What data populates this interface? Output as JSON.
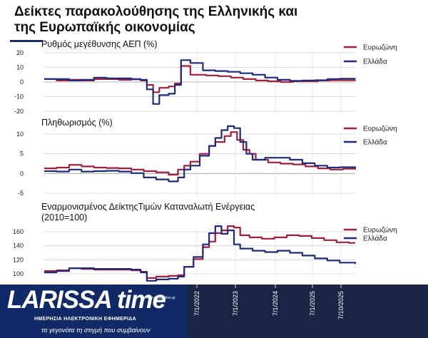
{
  "title": "Δείκτες παρακολούθησης της  Ελληνικής και\nτης Ευρωπαϊκής οικονομίας",
  "colors": {
    "eurozone": "#a01f3a",
    "greece": "#1e2b7a",
    "grid": "#cfcfcf",
    "axis": "#555555"
  },
  "date_labels": [
    "7/1/2022",
    "7/1/2023",
    "7/1/2024",
    "7/1/2025",
    "7/10/2025"
  ],
  "logo": {
    "main": "LARISSA time",
    "subtitle": "ΗΜΕΡΗΣΙΑ ΗΛΕΚΤΡΟΝΙΚΗ ΕΦΗΜΕΡΙΔΑ",
    "tagline": "τα γεγονότα τη στιγμή που συμβαίνουν",
    "url": "www.larissatime.gr"
  },
  "chart_data": [
    {
      "type": "line",
      "title": "Ρυθμός μεγέθυνσης ΑΕΠ (%)",
      "yticks": [
        20,
        10,
        0,
        -10,
        -20
      ],
      "ylim": [
        -20,
        20
      ],
      "xlim": [
        0,
        100
      ],
      "series": [
        {
          "name": "Ευρωζώνη",
          "color": "#a01f3a",
          "points": [
            [
              0,
              2
            ],
            [
              4,
              1
            ],
            [
              8,
              1.5
            ],
            [
              12,
              1
            ],
            [
              16,
              2
            ],
            [
              20,
              2
            ],
            [
              24,
              1.5
            ],
            [
              28,
              1.8
            ],
            [
              31,
              1
            ],
            [
              33,
              -2
            ],
            [
              35,
              -7
            ],
            [
              37,
              -4
            ],
            [
              40,
              -3
            ],
            [
              42,
              -1
            ],
            [
              44,
              11
            ],
            [
              47,
              5
            ],
            [
              52,
              4.5
            ],
            [
              56,
              4
            ],
            [
              60,
              3
            ],
            [
              64,
              2
            ],
            [
              68,
              1
            ],
            [
              72,
              0.5
            ],
            [
              76,
              0
            ],
            [
              80,
              0.5
            ],
            [
              84,
              0.5
            ],
            [
              88,
              1
            ],
            [
              92,
              1.2
            ],
            [
              96,
              1.2
            ],
            [
              100,
              1.3
            ]
          ]
        },
        {
          "name": "Ελλάδα",
          "color": "#1e2b7a",
          "points": [
            [
              0,
              2
            ],
            [
              4,
              2
            ],
            [
              8,
              1
            ],
            [
              12,
              1.5
            ],
            [
              16,
              3
            ],
            [
              20,
              2.5
            ],
            [
              24,
              2.5
            ],
            [
              28,
              2
            ],
            [
              31,
              1.5
            ],
            [
              33,
              -5
            ],
            [
              35,
              -15
            ],
            [
              37,
              -9
            ],
            [
              40,
              -8
            ],
            [
              42,
              -2
            ],
            [
              44,
              15
            ],
            [
              47,
              13
            ],
            [
              51,
              8
            ],
            [
              55,
              7.5
            ],
            [
              59,
              7
            ],
            [
              63,
              6
            ],
            [
              67,
              5
            ],
            [
              71,
              3
            ],
            [
              75,
              1.5
            ],
            [
              79,
              0.8
            ],
            [
              83,
              1
            ],
            [
              87,
              1.2
            ],
            [
              91,
              2
            ],
            [
              95,
              2.3
            ],
            [
              100,
              2.5
            ]
          ]
        }
      ]
    },
    {
      "type": "line",
      "title": "Πληθωρισμός (%)",
      "yticks": [
        10,
        5,
        0,
        -5
      ],
      "ylim": [
        -5,
        13
      ],
      "xlim": [
        0,
        100
      ],
      "series": [
        {
          "name": "Ευρωζώνη",
          "color": "#a01f3a",
          "points": [
            [
              0,
              1.3
            ],
            [
              4,
              1.5
            ],
            [
              8,
              2.2
            ],
            [
              12,
              1.8
            ],
            [
              16,
              1.5
            ],
            [
              20,
              1.4
            ],
            [
              24,
              1.3
            ],
            [
              28,
              1
            ],
            [
              32,
              0.6
            ],
            [
              36,
              0.3
            ],
            [
              40,
              -0.3
            ],
            [
              43,
              1
            ],
            [
              45,
              2
            ],
            [
              47,
              3
            ],
            [
              50,
              5
            ],
            [
              53,
              7
            ],
            [
              55,
              8
            ],
            [
              58,
              9.5
            ],
            [
              60,
              10.5
            ],
            [
              62,
              8.5
            ],
            [
              64,
              6
            ],
            [
              66,
              5
            ],
            [
              68,
              3.5
            ],
            [
              72,
              2.8
            ],
            [
              76,
              2.5
            ],
            [
              80,
              2.3
            ],
            [
              84,
              1.8
            ],
            [
              88,
              1.3
            ],
            [
              92,
              1
            ],
            [
              96,
              1.2
            ],
            [
              100,
              1.5
            ]
          ]
        },
        {
          "name": "Ελλάδα",
          "color": "#1e2b7a",
          "points": [
            [
              0,
              0.6
            ],
            [
              4,
              0.5
            ],
            [
              8,
              1
            ],
            [
              12,
              0.5
            ],
            [
              16,
              0.6
            ],
            [
              20,
              0.7
            ],
            [
              24,
              0.5
            ],
            [
              28,
              0.1
            ],
            [
              32,
              -1
            ],
            [
              36,
              -1.5
            ],
            [
              40,
              -2
            ],
            [
              43,
              -1
            ],
            [
              45,
              1
            ],
            [
              47,
              2
            ],
            [
              50,
              4.5
            ],
            [
              53,
              7
            ],
            [
              55,
              9
            ],
            [
              57,
              11
            ],
            [
              59,
              12
            ],
            [
              61,
              11.5
            ],
            [
              63,
              8
            ],
            [
              65,
              5
            ],
            [
              67,
              3.5
            ],
            [
              71,
              4
            ],
            [
              75,
              4
            ],
            [
              79,
              3.5
            ],
            [
              83,
              2.6
            ],
            [
              87,
              2
            ],
            [
              91,
              1.5
            ],
            [
              95,
              1.6
            ],
            [
              100,
              1.5
            ]
          ]
        }
      ]
    },
    {
      "type": "line",
      "title": "Εναρμονισμένος ΔείκτηςΤιμών Καταναλωτή Ενέργειας\n(2010=100)",
      "yticks": [
        160,
        140,
        120,
        100
      ],
      "ylim": [
        98,
        170
      ],
      "xlim": [
        0,
        100
      ],
      "series": [
        {
          "name": "Ευρωζώνη",
          "color": "#a01f3a",
          "points": [
            [
              0,
              104
            ],
            [
              4,
              105
            ],
            [
              8,
              108
            ],
            [
              12,
              107
            ],
            [
              16,
              106
            ],
            [
              20,
              106
            ],
            [
              24,
              106
            ],
            [
              28,
              105
            ],
            [
              31,
              103
            ],
            [
              33,
              94
            ],
            [
              36,
              96
            ],
            [
              40,
              97
            ],
            [
              43,
              98
            ],
            [
              45,
              110
            ],
            [
              48,
              121
            ],
            [
              51,
              138
            ],
            [
              53,
              146
            ],
            [
              55,
              158
            ],
            [
              57,
              162
            ],
            [
              59,
              168
            ],
            [
              61,
              166
            ],
            [
              63,
              155
            ],
            [
              66,
              152
            ],
            [
              70,
              150
            ],
            [
              74,
              152
            ],
            [
              78,
              155
            ],
            [
              82,
              154
            ],
            [
              86,
              151
            ],
            [
              90,
              148
            ],
            [
              94,
              145
            ],
            [
              98,
              144
            ],
            [
              100,
              144
            ]
          ]
        },
        {
          "name": "Ελλάδα",
          "color": "#1e2b7a",
          "points": [
            [
              0,
              102
            ],
            [
              4,
              104
            ],
            [
              8,
              108
            ],
            [
              12,
              108
            ],
            [
              16,
              107
            ],
            [
              20,
              107
            ],
            [
              24,
              107
            ],
            [
              28,
              106
            ],
            [
              31,
              102
            ],
            [
              33,
              90
            ],
            [
              36,
              92
            ],
            [
              40,
              93
            ],
            [
              43,
              96
            ],
            [
              45,
              110
            ],
            [
              48,
              124
            ],
            [
              51,
              142
            ],
            [
              53,
              158
            ],
            [
              55,
              168
            ],
            [
              57,
              157
            ],
            [
              59,
              162
            ],
            [
              61,
              142
            ],
            [
              63,
              136
            ],
            [
              67,
              133
            ],
            [
              71,
              131
            ],
            [
              75,
              133
            ],
            [
              79,
              130
            ],
            [
              83,
              126
            ],
            [
              87,
              122
            ],
            [
              91,
              119
            ],
            [
              95,
              116
            ],
            [
              100,
              114
            ]
          ]
        }
      ]
    }
  ]
}
